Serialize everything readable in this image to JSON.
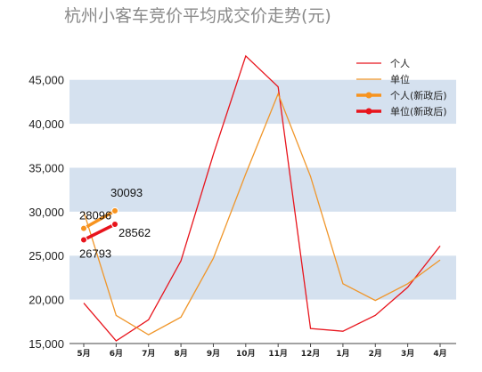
{
  "chart_data": {
    "type": "line",
    "title": "杭州小客车竞价平均成交价走势(元)",
    "xlabel": "",
    "ylabel": "",
    "categories": [
      "5月",
      "6月",
      "7月",
      "8月",
      "9月",
      "10月",
      "11月",
      "12月",
      "1月",
      "2月",
      "3月",
      "4月"
    ],
    "ylim": [
      15000,
      48000
    ],
    "yticks": [
      15000,
      20000,
      25000,
      30000,
      35000,
      40000,
      45000
    ],
    "ytick_labels": [
      "15,000",
      "20,000",
      "25,000",
      "30,000",
      "35,000",
      "40,000",
      "45,000"
    ],
    "grid": "horizontal bands",
    "legend_position": "top-right",
    "series": [
      {
        "name": "个人",
        "color": "#e8141c",
        "values": [
          19600,
          15300,
          17700,
          24400,
          36500,
          47700,
          44200,
          16700,
          16400,
          18200,
          21400,
          26100
        ]
      },
      {
        "name": "单位",
        "color": "#f0962a",
        "values": [
          30000,
          18200,
          16000,
          18000,
          24700,
          34300,
          43400,
          34000,
          21800,
          19900,
          21800,
          24500
        ]
      },
      {
        "name": "个人(新政后)",
        "color": "#f7931e",
        "marker": "dot",
        "points": [
          {
            "x": 0,
            "y": 28096
          },
          {
            "x": 1,
            "y": 30093
          }
        ],
        "labels": [
          "28096",
          "30093"
        ]
      },
      {
        "name": "单位(新政后)",
        "color": "#e8141c",
        "marker": "dot",
        "points": [
          {
            "x": 0,
            "y": 26793
          },
          {
            "x": 1,
            "y": 28562
          }
        ],
        "labels": [
          "26793",
          "28562"
        ]
      }
    ]
  }
}
